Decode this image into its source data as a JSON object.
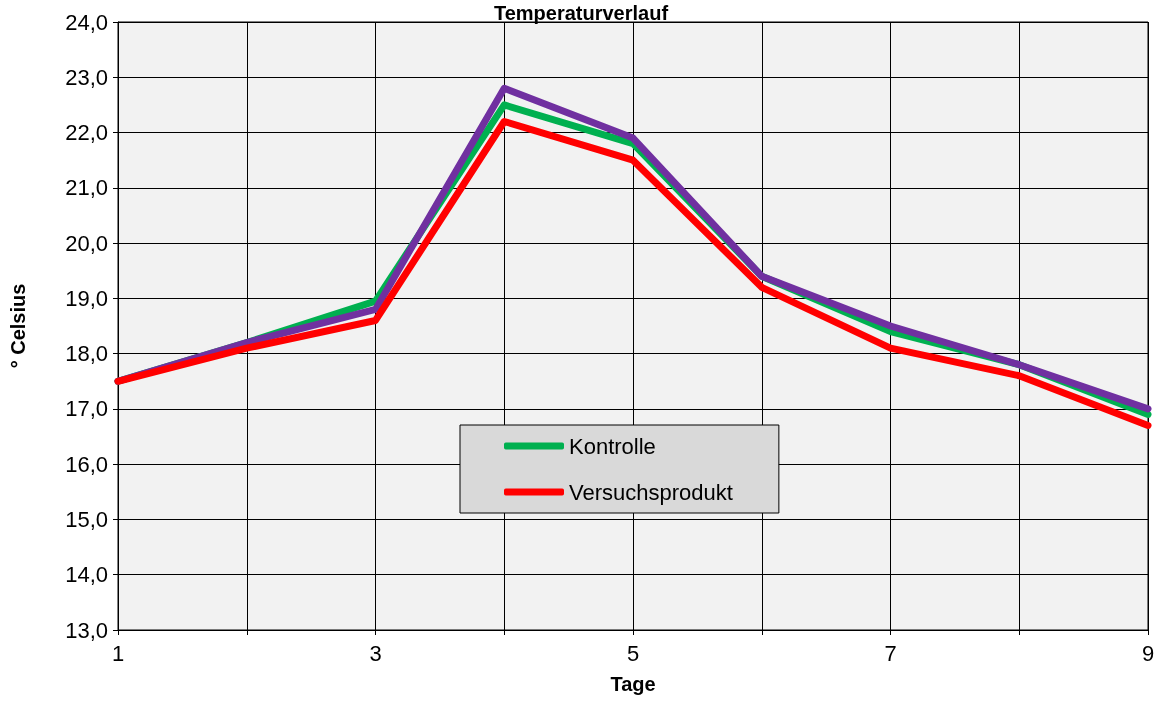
{
  "chart_data": {
    "type": "line",
    "title": "Temperaturverlauf",
    "xlabel": "Tage",
    "ylabel": "° Celsius",
    "x": [
      1,
      2,
      3,
      4,
      5,
      6,
      7,
      8,
      9
    ],
    "series": [
      {
        "name": "Kontrolle",
        "color": "#00b050",
        "values": [
          17.5,
          18.2,
          18.95,
          22.5,
          21.8,
          19.4,
          18.4,
          17.8,
          16.9
        ]
      },
      {
        "color": "#7030a0",
        "values": [
          17.5,
          18.2,
          18.8,
          22.8,
          21.9,
          19.4,
          18.5,
          17.8,
          17.0
        ]
      },
      {
        "name": "Versuchsprodukt",
        "color": "#ff0000",
        "values": [
          17.5,
          18.1,
          18.6,
          22.2,
          21.5,
          19.2,
          18.1,
          17.6,
          16.7
        ]
      }
    ],
    "xlim": [
      1,
      9
    ],
    "xticks": [
      1,
      {
        "value": 2,
        "label": null
      },
      3,
      {
        "value": 4,
        "label": null
      },
      5,
      {
        "value": 6,
        "label": null
      },
      7,
      {
        "value": 8,
        "label": null
      },
      9
    ],
    "ylim": [
      13,
      24
    ],
    "yticks": [
      {
        "value": 13,
        "label": "13,0"
      },
      {
        "value": 14,
        "label": "14,0"
      },
      {
        "value": 15,
        "label": "15,0"
      },
      {
        "value": 16,
        "label": "16,0"
      },
      {
        "value": 17,
        "label": "17,0"
      },
      {
        "value": 18,
        "label": "18,0"
      },
      {
        "value": 19,
        "label": "19,0"
      },
      {
        "value": 20,
        "label": "20,0"
      },
      {
        "value": 21,
        "label": "21,0"
      },
      {
        "value": 22,
        "label": "22,0"
      },
      {
        "value": 23,
        "label": "23,0"
      },
      {
        "value": 24,
        "label": "24,0"
      }
    ],
    "grid": true,
    "legend": "bottom",
    "marker": "none",
    "line_style": "solid"
  }
}
